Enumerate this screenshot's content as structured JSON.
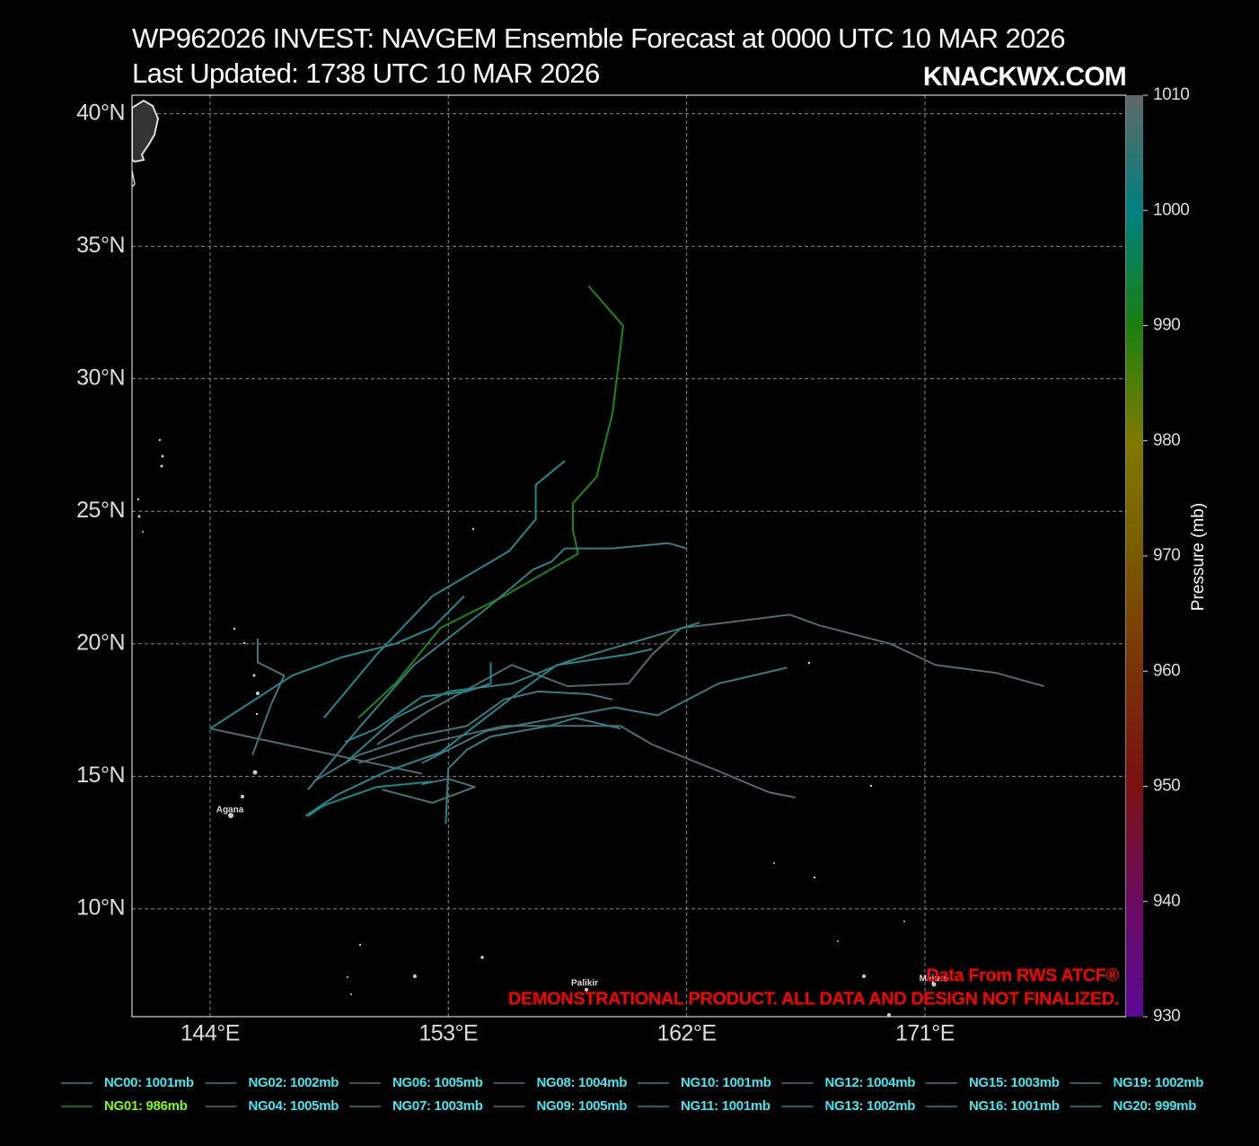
{
  "chart_data": {
    "type": "track-map",
    "title": "WP962026 INVEST: NAVGEM Ensemble Forecast at 0000 UTC 10 MAR 2026",
    "subtitle": "Last Updated: 1738 UTC 10 MAR 2026",
    "watermark": "KNACKWX.COM",
    "credit": "Data From RWS ATCF®",
    "disclaimer": "DEMONSTRATIONAL PRODUCT. ALL DATA AND DESIGN NOT FINALIZED.",
    "places": [
      "Agana",
      "Palikir",
      "Majuro"
    ],
    "xlim": [
      141.05,
      178.6
    ],
    "ylim": [
      5.93,
      40.7
    ],
    "xticks": [
      {
        "value": 144,
        "label": "144°E"
      },
      {
        "value": 153,
        "label": "153°E"
      },
      {
        "value": 162,
        "label": "162°E"
      },
      {
        "value": 171,
        "label": "171°E"
      }
    ],
    "yticks": [
      {
        "value": 10,
        "label": "10°N"
      },
      {
        "value": 15,
        "label": "15°N"
      },
      {
        "value": 20,
        "label": "20°N"
      },
      {
        "value": 25,
        "label": "25°N"
      },
      {
        "value": 30,
        "label": "30°N"
      },
      {
        "value": 35,
        "label": "35°N"
      },
      {
        "value": 40,
        "label": "40°N"
      }
    ],
    "grid": true,
    "colorbar": {
      "label": "Pressure (mb)",
      "lim": [
        930,
        1010
      ],
      "ticks": [
        930,
        940,
        950,
        960,
        970,
        980,
        990,
        1000,
        1010
      ],
      "colors": [
        "#5a0a96",
        "#6a0a60",
        "#7a1010",
        "#7a3208",
        "#7a5a00",
        "#807a00",
        "#1a8010",
        "#008080",
        "#606868"
      ]
    },
    "series": [
      {
        "name": "NC00: 1001mb",
        "color": "#1f8a90",
        "text_color": "#40e8f0",
        "lon": [
          148.3,
          150.3,
          152.4,
          155.3,
          156.3,
          156.3,
          157.4
        ],
        "lat": [
          17.2,
          19.6,
          21.8,
          23.5,
          24.7,
          26.0,
          26.9
        ]
      },
      {
        "name": "NG01: 986mb",
        "color": "#1a8a10",
        "text_color": "#7fff00",
        "lon": [
          149.6,
          151.0,
          152.7,
          155.1,
          157.9,
          157.7,
          157.7,
          158.6,
          159.2,
          159.6,
          158.3
        ],
        "lat": [
          17.2,
          18.5,
          20.6,
          21.8,
          23.4,
          24.3,
          25.3,
          26.3,
          28.7,
          32.0,
          33.5
        ]
      },
      {
        "name": "NG02: 1002mb",
        "color": "#2f8088",
        "text_color": "#40e8f0",
        "lon": [
          147.7,
          149.6,
          151.7,
          154.4,
          156.2,
          156.9,
          157.4,
          159.2,
          161.3,
          162.0
        ],
        "lat": [
          14.5,
          16.8,
          19.2,
          21.3,
          22.8,
          23.1,
          23.6,
          23.6,
          23.8,
          23.6
        ]
      },
      {
        "name": "NG04: 1005mb",
        "color": "#4d6c72",
        "text_color": "#40e8f0",
        "lon": [
          149.6,
          152.0,
          155.1,
          159.5,
          160.7,
          163.2,
          165.1,
          166.1
        ],
        "lat": [
          15.5,
          16.2,
          16.9,
          16.9,
          16.2,
          15.2,
          14.4,
          14.2
        ]
      },
      {
        "name": "NG06: 1005mb",
        "color": "#4d6c72",
        "text_color": "#40e8f0",
        "lon": [
          150.3,
          152.3,
          155.4,
          157.5,
          159.8,
          160.7,
          161.8,
          163.5,
          165.9,
          167.0,
          169.7,
          171.4,
          173.7,
          175.5
        ],
        "lat": [
          16.2,
          17.5,
          19.2,
          18.4,
          18.5,
          19.6,
          20.6,
          20.8,
          21.1,
          20.7,
          20.0,
          19.2,
          18.9,
          18.4
        ]
      },
      {
        "name": "NG07: 1003mb",
        "color": "#3a7a80",
        "text_color": "#40e8f0",
        "lon": [
          152.0,
          154.4,
          157.1,
          159.3,
          160.9,
          163.2,
          165.8
        ],
        "lat": [
          15.5,
          16.7,
          17.2,
          17.6,
          17.3,
          18.5,
          19.1
        ]
      },
      {
        "name": "NG08: 1004mb",
        "color": "#45737a",
        "text_color": "#40e8f0",
        "lon": [
          145.8,
          145.8,
          146.8,
          146.3,
          145.6
        ],
        "lat": [
          20.2,
          19.3,
          18.8,
          17.7,
          15.8
        ]
      },
      {
        "name": "NG09: 1005mb",
        "color": "#4d6c72",
        "text_color": "#40e8f0",
        "lon": [
          144.0,
          147.3,
          152.0
        ],
        "lat": [
          16.8,
          16.1,
          15.1
        ]
      },
      {
        "name": "NG10: 1001mb",
        "color": "#1f8a90",
        "text_color": "#40e8f0",
        "lon": [
          144.0,
          147.1,
          149.0,
          151.0,
          152.4,
          153.6
        ],
        "lat": [
          16.8,
          18.8,
          19.5,
          20.0,
          20.6,
          21.8
        ]
      },
      {
        "name": "NG11: 1001mb",
        "color": "#1f8a90",
        "text_color": "#40e8f0",
        "lon": [
          147.6,
          148.8,
          150.7,
          152.7,
          154.4,
          155.7,
          157.1,
          159.8,
          160.7
        ],
        "lat": [
          13.5,
          14.3,
          15.2,
          15.9,
          17.2,
          18.2,
          19.2,
          19.6,
          19.8
        ]
      },
      {
        "name": "NG12: 1004mb",
        "color": "#45737a",
        "text_color": "#40e8f0",
        "lon": [
          150.5,
          152.4,
          154.0,
          153.0,
          152.0
        ],
        "lat": [
          14.5,
          14.0,
          14.6,
          14.9,
          14.7
        ]
      },
      {
        "name": "NG13: 1002mb",
        "color": "#2f8088",
        "text_color": "#40e8f0",
        "lon": [
          152.9,
          153.0,
          153.7,
          154.6,
          156.8,
          157.8,
          159.5
        ],
        "lat": [
          13.2,
          15.3,
          16.0,
          16.5,
          16.9,
          17.2,
          16.8
        ]
      },
      {
        "name": "NG15: 1003mb",
        "color": "#3a7a80",
        "text_color": "#40e8f0",
        "lon": [
          147.9,
          149.6,
          151.7,
          153.7,
          155.1,
          156.4,
          158.3,
          159.2
        ],
        "lat": [
          14.8,
          15.8,
          16.5,
          16.9,
          17.9,
          18.2,
          18.1,
          17.9
        ]
      },
      {
        "name": "NG16: 1001mb",
        "color": "#1f8a90",
        "text_color": "#40e8f0",
        "lon": [
          149.1,
          150.3,
          152.0,
          153.7,
          154.6,
          154.6
        ],
        "lat": [
          16.3,
          16.8,
          18.0,
          18.2,
          18.5,
          19.3
        ]
      },
      {
        "name": "NG19: 1002mb",
        "color": "#2f8088",
        "text_color": "#40e8f0",
        "lon": [
          149.1,
          151.0,
          153.0,
          155.4,
          157.4,
          159.1,
          161.5,
          162.5
        ],
        "lat": [
          15.5,
          17.2,
          18.2,
          18.5,
          19.3,
          19.8,
          20.5,
          20.8
        ]
      },
      {
        "name": "NG20: 999mb",
        "color": "#0f8c90",
        "text_color": "#40e8f0",
        "lon": [
          147.7,
          148.3,
          150.3,
          152.4
        ],
        "lat": [
          13.5,
          13.9,
          14.6,
          14.8
        ]
      }
    ]
  }
}
